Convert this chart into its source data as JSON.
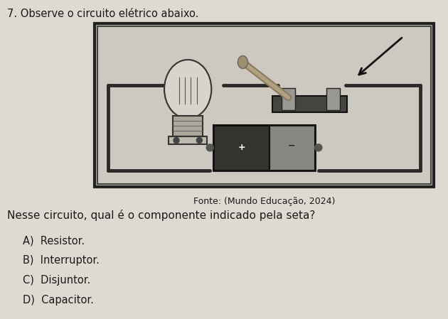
{
  "background_color": "#dedad2",
  "question_number": "7.",
  "question_text": "Observe o circuito elétrico abaixo.",
  "caption": "Fonte: (Mundo Educação, 2024)",
  "main_question": "Nesse circuito, qual é o componente indicado pela seta?",
  "options": [
    "A)  Resistor.",
    "B)  Interruptor.",
    "C)  Disjuntor.",
    "D)  Capacitor."
  ],
  "text_color": "#1a1a1a",
  "wire_color": "#2a2a2a",
  "box_edge_color": "#222222",
  "box_face_color": "#c8c5bc",
  "bat_dark": "#333330",
  "bat_light": "#888882",
  "switch_base_color": "#444440",
  "switch_post_color": "#999992",
  "lever_color": "#8a7a60",
  "lamp_bulb_color": "#d8d4cc",
  "lamp_base_color": "#aaa89a"
}
